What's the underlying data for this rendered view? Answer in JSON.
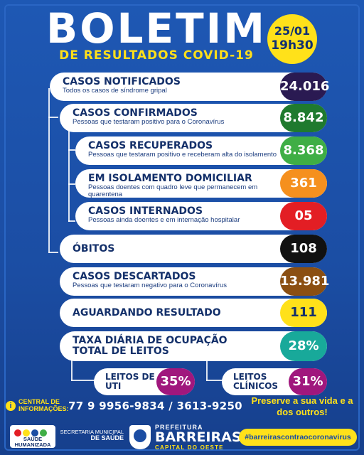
{
  "header": {
    "title": "BOLETIM",
    "subtitle": "DE RESULTADOS COVID-19",
    "date": "25/01",
    "time": "19h30"
  },
  "rows": [
    {
      "label": "CASOS NOTIFICADOS",
      "desc": "Todos os casos de síndrome gripal",
      "value": "24.016",
      "color": "#2a1a52"
    },
    {
      "label": "CASOS CONFIRMADOS",
      "desc": "Pessoas que testaram positivo para o Coronavírus",
      "value": "8.842",
      "color": "#1f7a2e"
    },
    {
      "label": "CASOS RECUPERADOS",
      "desc": "Pessoas que testaram positivo e receberam alta do isolamento",
      "value": "8.368",
      "color": "#3fae45"
    },
    {
      "label": "EM ISOLAMENTO DOMICILIAR",
      "desc": "Pessoas doentes com quadro leve que permanecem em quarentena",
      "value": "361",
      "color": "#f5901e"
    },
    {
      "label": "CASOS INTERNADOS",
      "desc": "Pessoas ainda doentes e em internação hospitalar",
      "value": "05",
      "color": "#e31e24"
    },
    {
      "label": "ÓBITOS",
      "desc": "",
      "value": "108",
      "color": "#111111"
    },
    {
      "label": "CASOS DESCARTADOS",
      "desc": "Pessoas que testaram negativo para o Coronavírus",
      "value": "13.981",
      "color": "#8b4f12"
    },
    {
      "label": "AGUARDANDO RESULTADO",
      "desc": "",
      "value": "111",
      "color": "#ffe11a"
    },
    {
      "label": "TAXA DIÁRIA DE OCUPAÇÃO TOTAL DE LEITOS",
      "desc": "",
      "value": "28%",
      "color": "#18a99a"
    }
  ],
  "leitos": {
    "uti": {
      "label": "LEITOS DE UTI",
      "value": "35%"
    },
    "clinicos": {
      "label": "LEITOS CLÍNICOS",
      "value": "31%"
    }
  },
  "contact": {
    "label": "CENTRAL DE INFORMAÇÕES:",
    "phone": "77 9 9956-9834 / 3613-9250"
  },
  "slogan": "Preserve a sua vida e a dos outros!",
  "footer": {
    "saude": "SAÚDE HUMANIZADA",
    "secretaria": "SECRETARIA MUNICIPAL",
    "secretaria_bold": "DE SAÚDE",
    "prefeitura_top": "PREFEITURA",
    "prefeitura_main": "BARREIRAS",
    "prefeitura_sub": "CAPITAL DO OESTE",
    "hashtag": "#barreirascontraocoronavirus"
  }
}
